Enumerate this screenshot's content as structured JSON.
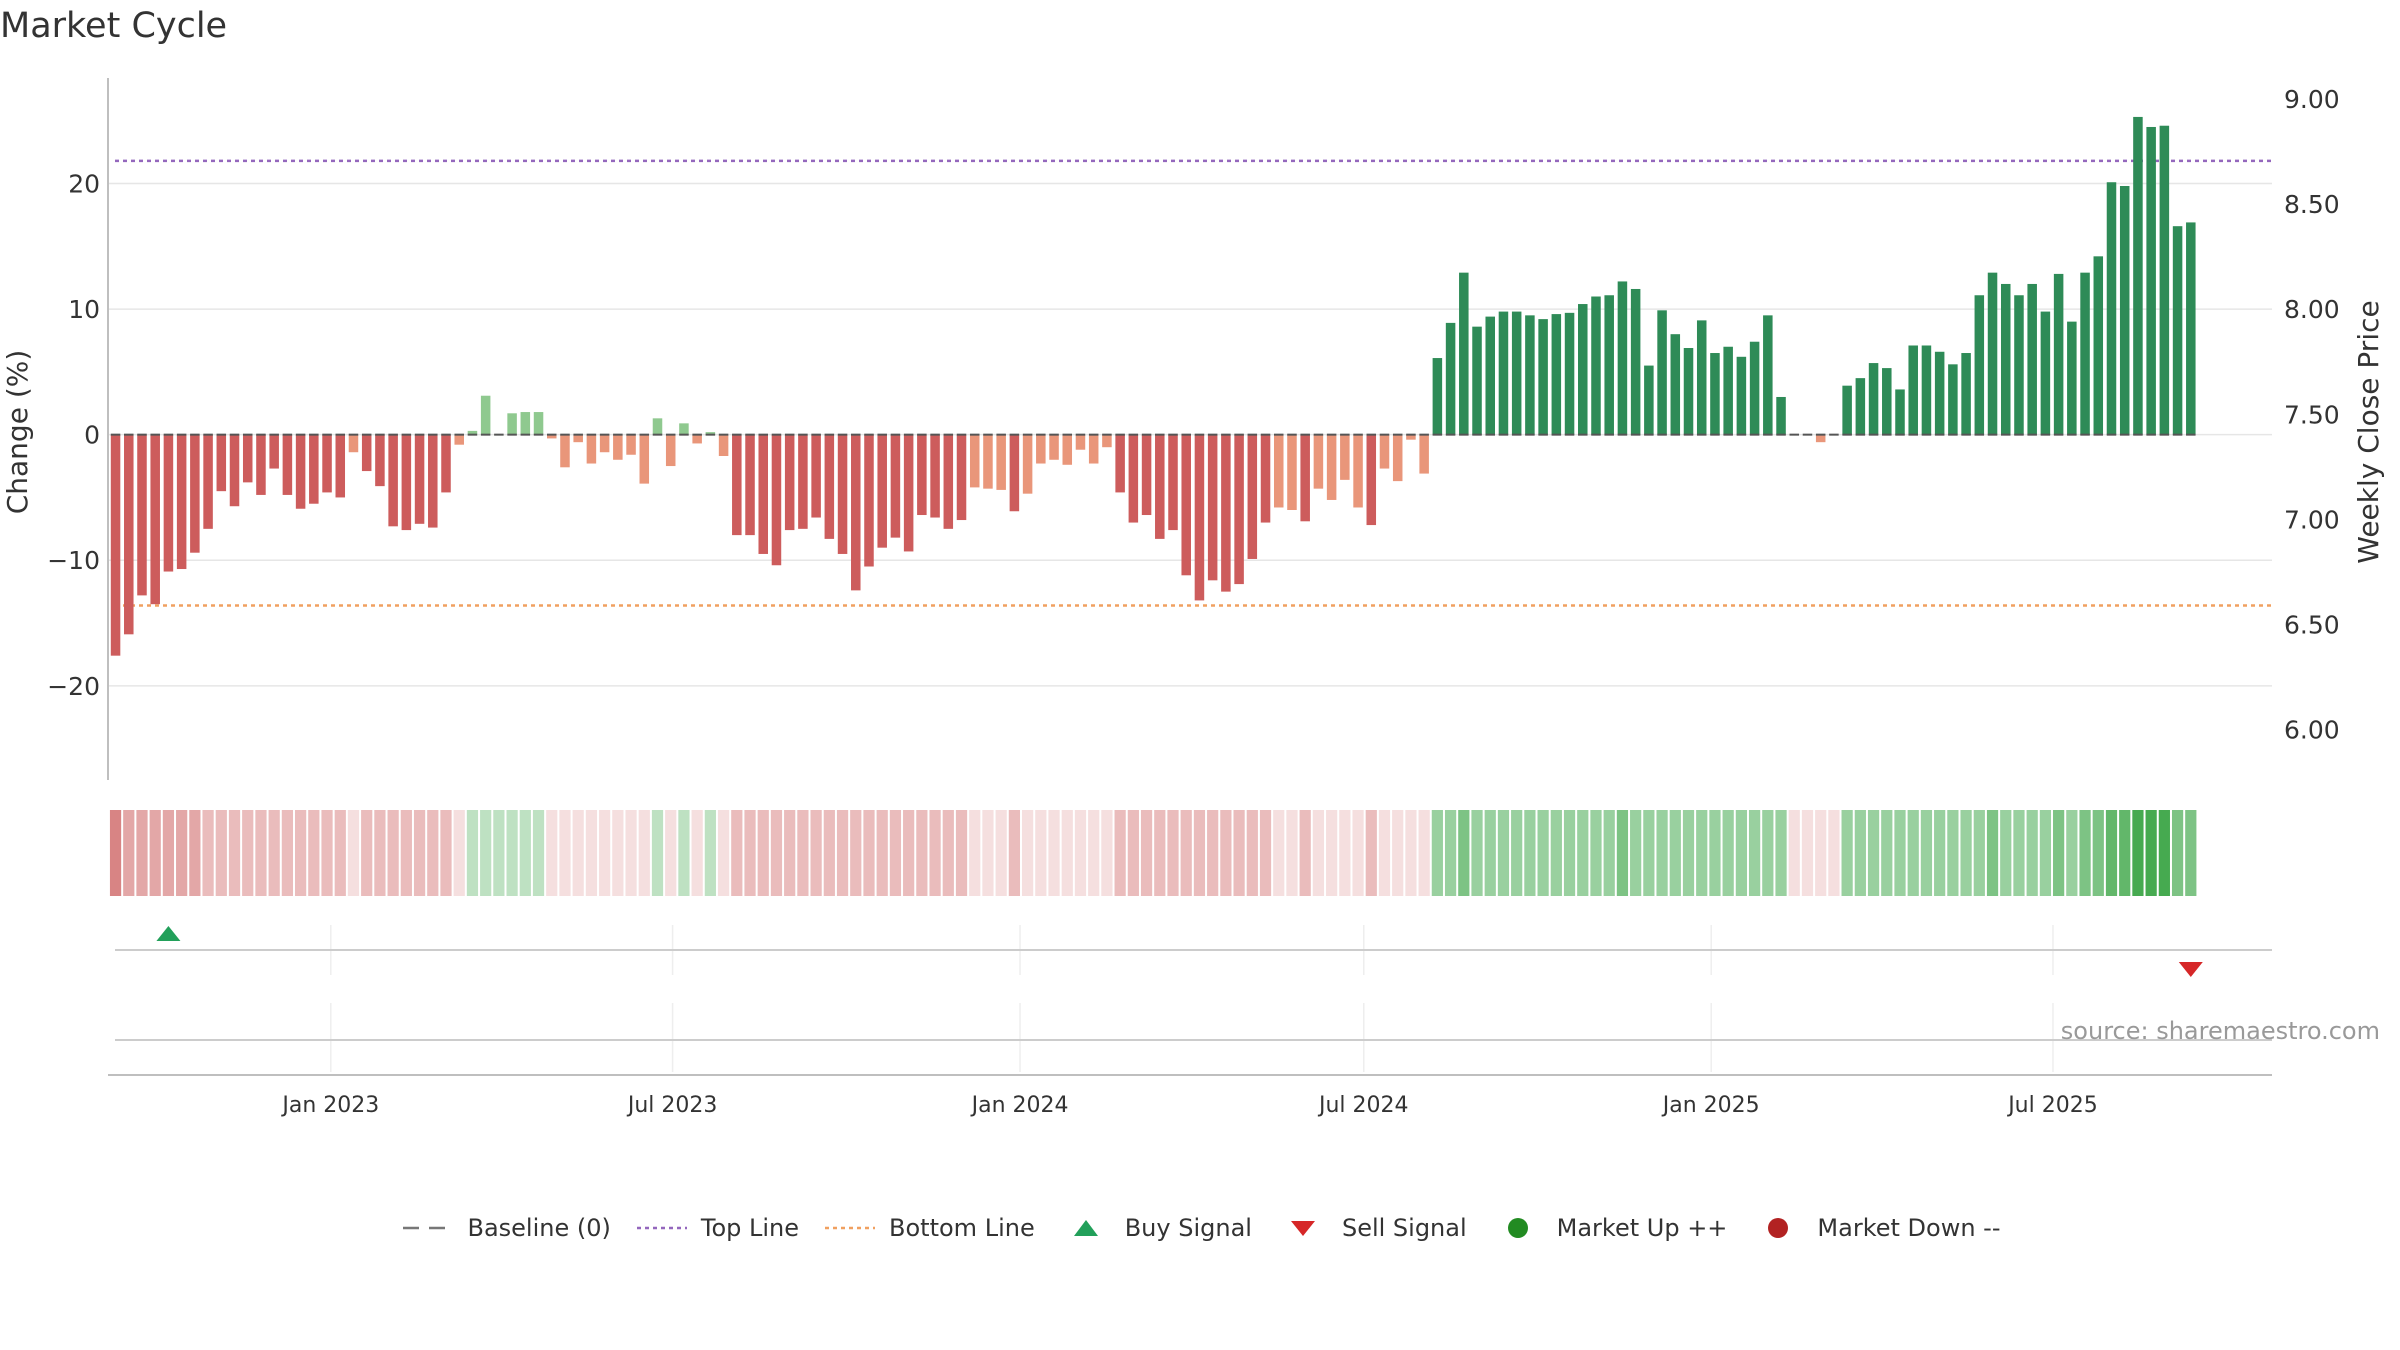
{
  "title": "Market Cycle",
  "source": "source: sharemaestro.com",
  "chart_data": {
    "type": "bar",
    "title": "Market Cycle",
    "xlabel": "",
    "ylabel": "Change (%)",
    "ylabel_right": "Weekly Close Price",
    "ylim": [
      -27.5,
      28.4
    ],
    "ylim_right": [
      5.76,
      9.1
    ],
    "yticks": [
      -20,
      -10,
      0,
      10,
      20
    ],
    "yticks_right": [
      "6.00",
      "6.50",
      "7.00",
      "7.50",
      "8.00",
      "8.50",
      "9.00"
    ],
    "x_start": "2022-09-09",
    "x_step_days": 7,
    "x_range": [
      "2022-09-05",
      "2025-10-25"
    ],
    "x_ticks": [
      {
        "label": "Jan 2023",
        "date": "2023-01-01"
      },
      {
        "label": "Jul 2023",
        "date": "2023-07-01"
      },
      {
        "label": "Jan 2024",
        "date": "2024-01-01"
      },
      {
        "label": "Jul 2024",
        "date": "2024-07-01"
      },
      {
        "label": "Jan 2025",
        "date": "2025-01-01"
      },
      {
        "label": "Jul 2025",
        "date": "2025-07-01"
      }
    ],
    "top_line": 21.8,
    "bottom_line": -13.6,
    "baseline": 0,
    "grid": true,
    "legend_position": "bottom",
    "values": [
      -17.6,
      -15.9,
      -12.8,
      -13.5,
      -10.9,
      -10.7,
      -9.4,
      -7.5,
      -4.5,
      -5.7,
      -3.8,
      -4.8,
      -2.7,
      -4.8,
      -5.9,
      -5.5,
      -4.6,
      -5.0,
      -1.4,
      -2.9,
      -4.1,
      -7.3,
      -7.6,
      -7.1,
      -7.4,
      -4.6,
      -0.8,
      0.3,
      3.1,
      0,
      1.7,
      1.8,
      1.8,
      -0.3,
      -2.6,
      -0.6,
      -2.3,
      -1.4,
      -2.0,
      -1.6,
      -3.9,
      1.3,
      -2.5,
      0.9,
      -0.7,
      0.2,
      -1.7,
      -8.0,
      -8.0,
      -9.5,
      -10.4,
      -7.6,
      -7.5,
      -6.6,
      -8.3,
      -9.5,
      -12.4,
      -10.5,
      -9.0,
      -8.2,
      -9.3,
      -6.4,
      -6.6,
      -7.5,
      -6.8,
      -4.2,
      -4.3,
      -4.4,
      -6.1,
      -4.7,
      -2.3,
      -2.0,
      -2.4,
      -1.2,
      -2.3,
      -1.0,
      -4.6,
      -7.0,
      -6.4,
      -8.3,
      -7.6,
      -11.2,
      -13.2,
      -11.6,
      -12.5,
      -11.9,
      -9.9,
      -7.0,
      -5.8,
      -6.0,
      -6.9,
      -4.3,
      -5.2,
      -3.6,
      -5.8,
      -7.2,
      -2.7,
      -3.7,
      -0.4,
      -3.1,
      6.1,
      8.9,
      12.9,
      8.6,
      9.4,
      9.8,
      9.8,
      9.5,
      9.2,
      9.6,
      9.7,
      10.4,
      11.0,
      11.1,
      12.2,
      11.6,
      5.5,
      9.9,
      8.0,
      6.9,
      9.1,
      6.5,
      7.0,
      6.2,
      7.4,
      9.5,
      3.0,
      0,
      0,
      -0.6,
      0,
      3.9,
      4.5,
      5.7,
      5.3,
      3.6,
      7.1,
      7.1,
      6.6,
      5.6,
      6.5,
      11.1,
      12.9,
      12.0,
      11.1,
      12.0,
      9.8,
      12.8,
      9.0,
      12.9,
      14.2,
      20.1,
      19.8,
      25.3,
      24.5,
      24.6,
      16.6,
      16.9
    ],
    "cycle_strength": [
      -5,
      -3,
      -3,
      -3,
      -3,
      -3,
      -3,
      -2,
      -2,
      -2,
      -2,
      -2,
      -2,
      -2,
      -2,
      -2,
      -2,
      -2,
      -1,
      -2,
      -2,
      -2,
      -2,
      -2,
      -2,
      -2,
      -1,
      1,
      1,
      1,
      1,
      1,
      1,
      -1,
      -1,
      -1,
      -1,
      -1,
      -1,
      -1,
      -1,
      1,
      -1,
      1,
      -1,
      1,
      -1,
      -2,
      -2,
      -2,
      -2,
      -2,
      -2,
      -2,
      -2,
      -2,
      -2,
      -2,
      -2,
      -2,
      -2,
      -2,
      -2,
      -2,
      -2,
      -1,
      -1,
      -1,
      -2,
      -1,
      -1,
      -1,
      -1,
      -1,
      -1,
      -1,
      -2,
      -2,
      -2,
      -2,
      -2,
      -2,
      -2,
      -2,
      -2,
      -2,
      -2,
      -2,
      -1,
      -1,
      -2,
      -1,
      -1,
      -1,
      -1,
      -2,
      -1,
      -1,
      -1,
      -1,
      2,
      2,
      3,
      2,
      2,
      2,
      2,
      2,
      2,
      2,
      2,
      2,
      2,
      2,
      3,
      2,
      2,
      2,
      2,
      2,
      2,
      2,
      2,
      2,
      2,
      2,
      2,
      -1,
      -1,
      -1,
      -1,
      2,
      2,
      2,
      2,
      2,
      2,
      2,
      2,
      2,
      2,
      2,
      3,
      2,
      2,
      2,
      2,
      3,
      2,
      3,
      3,
      4,
      4,
      5,
      5,
      5,
      3,
      3
    ],
    "signals": [
      {
        "type": "buy",
        "date": "2022-10-07"
      },
      {
        "type": "sell",
        "date": "2025-09-12"
      }
    ],
    "legend": [
      {
        "label": "Baseline (0)",
        "symbol": "dash",
        "color": "#777777"
      },
      {
        "label": "Top Line",
        "symbol": "dot",
        "color": "#9467bd"
      },
      {
        "label": "Bottom Line",
        "symbol": "dot",
        "color": "#f0a060"
      },
      {
        "label": "Buy Signal",
        "symbol": "triangle-up",
        "color": "#22a05a"
      },
      {
        "label": "Sell Signal",
        "symbol": "triangle-down",
        "color": "#d62728"
      },
      {
        "label": "Market Up ++",
        "symbol": "circle",
        "color": "#228b22"
      },
      {
        "label": "Market Down --",
        "symbol": "circle",
        "color": "#b22222"
      }
    ],
    "colors": {
      "up_dark": "#2e8b57",
      "up_light": "#8fc98f",
      "down_dark": "#cd5c5c",
      "down_light": "#e9967a",
      "grid": "#e6e6e6",
      "axis": "#bfbfbf"
    }
  }
}
